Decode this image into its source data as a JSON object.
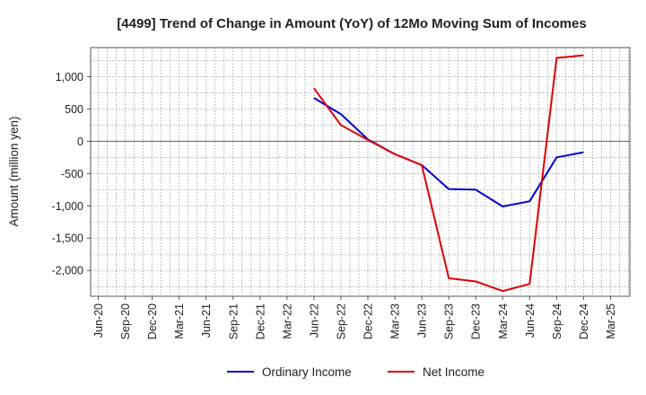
{
  "chart_data": {
    "type": "line",
    "title": "[4499]  Trend of Change in Amount (YoY) of 12Mo Moving Sum of Incomes",
    "xlabel": "",
    "ylabel": "Amount (million yen)",
    "categories": [
      "Jun-20",
      "Sep-20",
      "Dec-20",
      "Mar-21",
      "Jun-21",
      "Sep-21",
      "Dec-21",
      "Mar-22",
      "Jun-22",
      "Sep-22",
      "Dec-22",
      "Mar-23",
      "Jun-23",
      "Sep-23",
      "Dec-23",
      "Mar-24",
      "Jun-24",
      "Sep-24",
      "Dec-24",
      "Mar-25"
    ],
    "ylim": [
      -2400,
      1450
    ],
    "yticks": [
      1000,
      500,
      0,
      -500,
      -1000,
      -1500,
      -2000
    ],
    "ytick_labels": [
      "1,000",
      "500",
      "0",
      "-500",
      "-1,000",
      "-1,500",
      "-2,000"
    ],
    "grid": true,
    "legend_position": "bottom",
    "series": [
      {
        "name": "Ordinary Income",
        "color": "#0000cc",
        "values": [
          null,
          null,
          null,
          null,
          null,
          null,
          null,
          null,
          670,
          420,
          30,
          -200,
          -370,
          -740,
          -750,
          -1010,
          -930,
          -250,
          -170,
          null
        ]
      },
      {
        "name": "Net Income",
        "color": "#dd0000",
        "values": [
          null,
          null,
          null,
          null,
          null,
          null,
          null,
          null,
          820,
          250,
          20,
          -200,
          -370,
          -2120,
          -2170,
          -2320,
          -2210,
          1290,
          1330,
          null
        ]
      }
    ]
  }
}
